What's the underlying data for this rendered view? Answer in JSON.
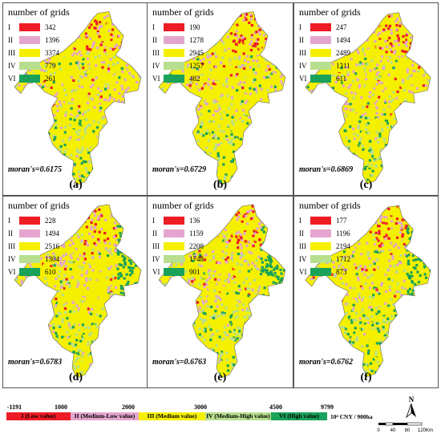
{
  "legend_title": "number of grids",
  "classes": [
    {
      "roman": "I",
      "color": "#ee1c25"
    },
    {
      "roman": "II",
      "color": "#e4a6cf"
    },
    {
      "roman": "III",
      "color": "#f5f000"
    },
    {
      "roman": "IV",
      "color": "#b7df8e"
    },
    {
      "roman": "VI",
      "color": "#1aa25a"
    }
  ],
  "panels": [
    {
      "label": "(a)",
      "moran": "moran's=0.6175",
      "counts": [
        "342",
        "1396",
        "3374",
        "779",
        "261"
      ]
    },
    {
      "label": "(b)",
      "moran": "moran's=0.6729",
      "counts": [
        "190",
        "1278",
        "2945",
        "1257",
        "482"
      ]
    },
    {
      "label": "(c)",
      "moran": "moran's=0.6869",
      "counts": [
        "247",
        "1494",
        "2489",
        "1311",
        "611"
      ]
    },
    {
      "label": "(d)",
      "moran": "moran's=0.6783",
      "counts": [
        "228",
        "1494",
        "2516",
        "1304",
        "610"
      ]
    },
    {
      "label": "(e)",
      "moran": "moran's=0.6763",
      "counts": [
        "136",
        "1159",
        "2208",
        "1748",
        "901"
      ]
    },
    {
      "label": "(f)",
      "moran": "moran's=0.6762",
      "counts": [
        "177",
        "1196",
        "2194",
        "1712",
        "873"
      ]
    }
  ],
  "colorbar": {
    "ticks": [
      "-1191",
      "1000",
      "2000",
      "3000",
      "4500",
      "9799"
    ],
    "segments": [
      {
        "label": "I (Low value)",
        "color": "#ee1c25"
      },
      {
        "label": "II (Medium-Low value)",
        "color": "#e4a6cf"
      },
      {
        "label": "III (Medium value)",
        "color": "#f5f000"
      },
      {
        "label": "IV (Medium-High value)",
        "color": "#b7df8e"
      },
      {
        "label": "VI (High value)",
        "color": "#1aa25a"
      }
    ],
    "unit": "10⁴ CNY / 900ha"
  },
  "north_label": "N",
  "scale": {
    "ticks": [
      "0",
      "40",
      "80",
      "120"
    ],
    "unit": "Km"
  }
}
